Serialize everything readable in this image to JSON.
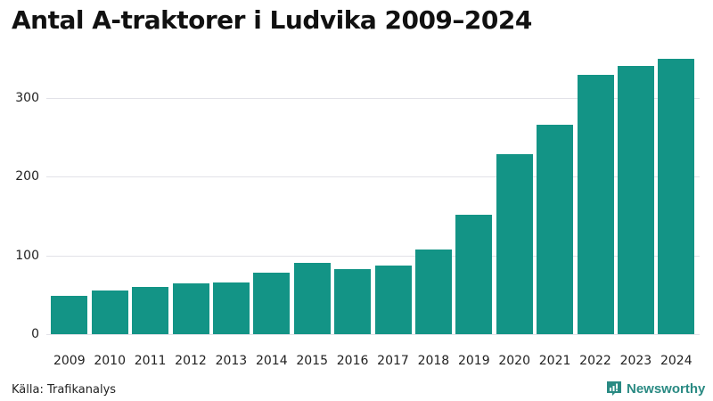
{
  "header": {
    "title": "Antal A-traktorer i Ludvika 2009–2024"
  },
  "footer": {
    "source": "Källa: Trafikanalys",
    "brand": "Newsworthy",
    "brand_icon": "bar-chart-speech-bubble-icon"
  },
  "colors": {
    "bar": "#139486",
    "grid": "#e2e2e8",
    "brand": "#2a8a83"
  },
  "chart_data": {
    "type": "bar",
    "title": "Antal A-traktorer i Ludvika 2009–2024",
    "xlabel": "",
    "ylabel": "",
    "categories": [
      "2009",
      "2010",
      "2011",
      "2012",
      "2013",
      "2014",
      "2015",
      "2016",
      "2017",
      "2018",
      "2019",
      "2020",
      "2021",
      "2022",
      "2023",
      "2024"
    ],
    "values": [
      49,
      56,
      60,
      65,
      66,
      78,
      91,
      83,
      87,
      108,
      152,
      229,
      266,
      329,
      341,
      350
    ],
    "ylim": [
      0,
      360
    ],
    "yticks": [
      0,
      100,
      200,
      300
    ],
    "grid": true,
    "legend": null,
    "source": "Källa: Trafikanalys"
  }
}
